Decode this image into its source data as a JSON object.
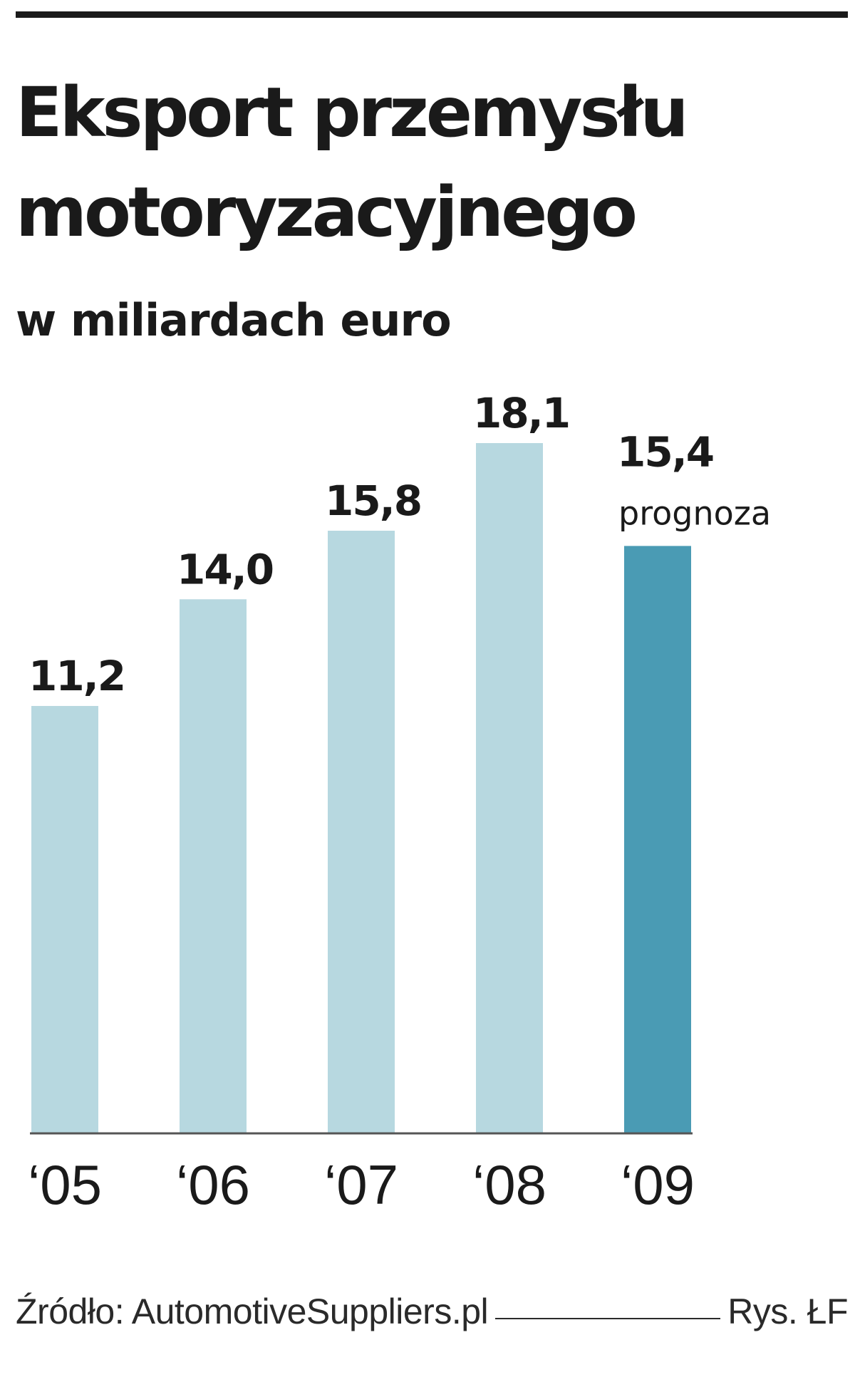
{
  "header": {
    "title": "Eksport przemysłu motoryzacyjnego",
    "subtitle": "w miliardach euro"
  },
  "footer": {
    "source": "Źródło: AutomotiveSuppliers.pl",
    "credit": "Rys. ŁF"
  },
  "colors": {
    "bar": "#b7d8e0",
    "bar_forecast": "#4a9bb4",
    "axis": "#555555",
    "text": "#1a1a1a"
  },
  "chart_data": {
    "type": "bar",
    "categories": [
      "‘05",
      "‘06",
      "‘07",
      "‘08",
      "‘09"
    ],
    "values": [
      11.2,
      14.0,
      15.8,
      18.1,
      15.4
    ],
    "value_labels": [
      "11,2",
      "14,0",
      "15,8",
      "18,1",
      "15,4"
    ],
    "forecast": [
      false,
      false,
      false,
      false,
      true
    ],
    "annotations": [
      {
        "category": "‘09",
        "text": "prognoza"
      }
    ],
    "ylim": [
      0,
      18.1
    ],
    "grid": false,
    "legend": "none"
  }
}
